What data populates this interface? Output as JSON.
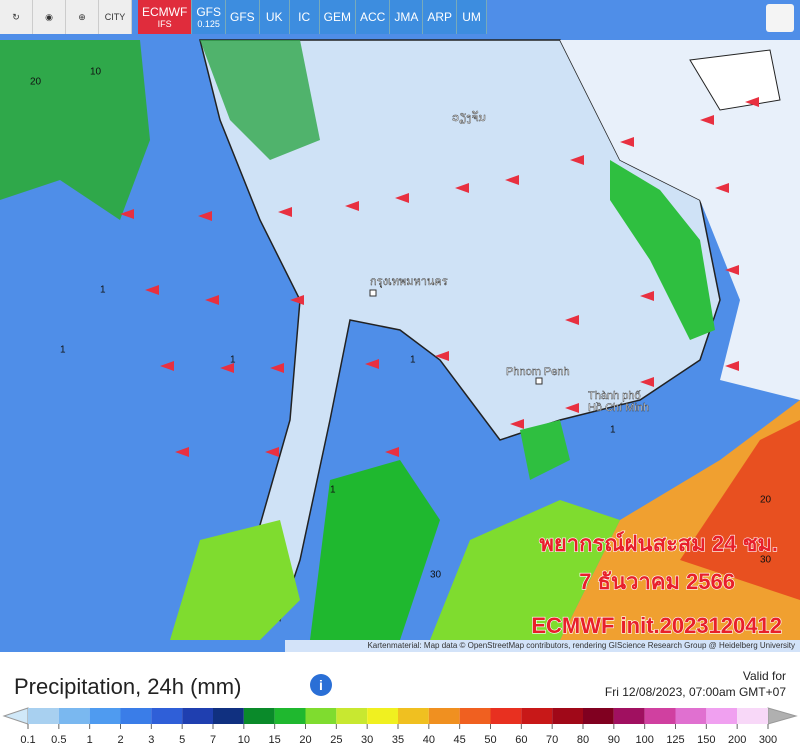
{
  "toolbar": {
    "city": "CITY",
    "models": [
      {
        "name": "ECMWF",
        "sub": "IFS"
      },
      {
        "name": "GFS",
        "sub": "0.125"
      },
      {
        "name": "GFS"
      },
      {
        "name": "UK"
      },
      {
        "name": "IC"
      },
      {
        "name": "GEM"
      },
      {
        "name": "ACC"
      },
      {
        "name": "JMA"
      },
      {
        "name": "ARP"
      },
      {
        "name": "UM"
      }
    ]
  },
  "map": {
    "places": [
      "Phnom Penh",
      "Thành phố",
      "Hồ Chí Minh",
      "กรุงเทพมหานคร",
      "ວຽງຈັນ"
    ],
    "contour_labels": [
      "20",
      "10",
      "1",
      "1",
      "1",
      "1",
      "1",
      "1",
      "30",
      "20",
      "30"
    ],
    "overlay": [
      "พยากรณ์ฝนสะสม 24 ชม.",
      "7 ธันวาคม 2566",
      "ECMWF init.2023120412"
    ],
    "attribution": "Kartenmaterial: Map data © OpenStreetMap contributors, rendering GIScience Research Group @ Heidelberg University"
  },
  "legend": {
    "title": "Precipitation, 24h (mm)",
    "valid_label": "Valid for",
    "valid_time": "Fri 12/08/2023, 07:00am GMT+07",
    "ticks": [
      0.1,
      0.5,
      1,
      2,
      3,
      5,
      7,
      10,
      15,
      20,
      25,
      30,
      35,
      40,
      45,
      50,
      60,
      70,
      80,
      90,
      100,
      125,
      150,
      200,
      300
    ]
  }
}
